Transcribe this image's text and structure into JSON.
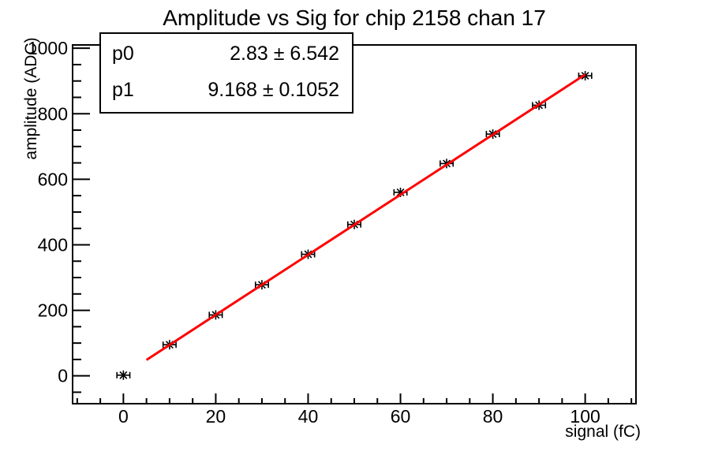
{
  "title": "Amplitude vs Sig for chip 2158 chan 17",
  "stats_box": {
    "rows": [
      {
        "name": "p0",
        "value": "2.83 ± 6.542"
      },
      {
        "name": "p1",
        "value": "9.168 ± 0.1052"
      }
    ]
  },
  "chart_data": {
    "type": "scatter",
    "title": "Amplitude vs Sig for chip 2158 chan 17",
    "xlabel": "signal (fC)",
    "ylabel": "amplitude (ADC)",
    "x": [
      0,
      10,
      20,
      30,
      40,
      50,
      60,
      70,
      80,
      90,
      100
    ],
    "y": [
      2,
      95,
      186,
      278,
      371,
      462,
      560,
      648,
      738,
      826,
      916
    ],
    "x_error": 1.4,
    "xlim": [
      -11,
      111
    ],
    "ylim": [
      -85,
      1010
    ],
    "x_major_ticks": [
      0,
      20,
      40,
      60,
      80,
      100
    ],
    "x_minor_step": 5,
    "y_major_ticks": [
      0,
      200,
      400,
      600,
      800,
      1000
    ],
    "y_minor_step": 50,
    "grid": false,
    "legend_position": "none",
    "marker_style": "asterisk-with-x-error-bars",
    "marker_color": "#000000",
    "fit": {
      "type": "linear",
      "p0": 2.83,
      "p1": 9.168,
      "x_range": [
        5,
        100
      ],
      "color": "#ff0000"
    }
  },
  "colors": {
    "background": "#ffffff",
    "axis": "#000000",
    "text": "#000000",
    "fit_line": "#ff0000"
  }
}
